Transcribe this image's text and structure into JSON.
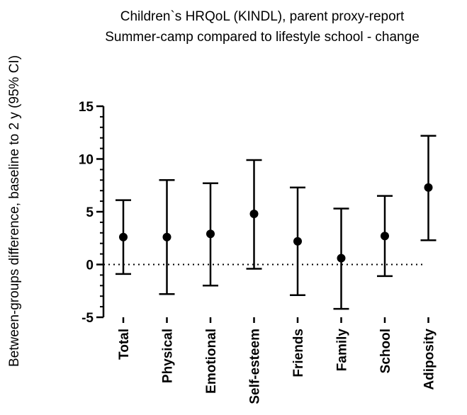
{
  "chart_data": {
    "type": "scatter",
    "title": "Children`s HRQoL (KINDL), parent proxy-report",
    "subtitle": "Summer-camp compared to lifestyle school - change",
    "xlabel": "",
    "ylabel": "Between-groups difference, baseline to 2 y (95% CI)",
    "ylim": [
      -5,
      15
    ],
    "yticks": [
      -5,
      0,
      5,
      10,
      15
    ],
    "reference_line": 0,
    "categories": [
      "Total",
      "Physical",
      "Emotional",
      "Self-esteem",
      "Friends",
      "Family",
      "School",
      "Adiposity"
    ],
    "values": [
      2.6,
      2.6,
      2.9,
      4.8,
      2.2,
      0.6,
      2.7,
      7.3
    ],
    "ci_lower": [
      -0.9,
      -2.8,
      -2.0,
      -0.4,
      -2.9,
      -4.2,
      -1.1,
      2.3
    ],
    "ci_upper": [
      6.1,
      8.0,
      7.7,
      9.9,
      7.3,
      5.3,
      6.5,
      12.2
    ],
    "grid": false
  }
}
